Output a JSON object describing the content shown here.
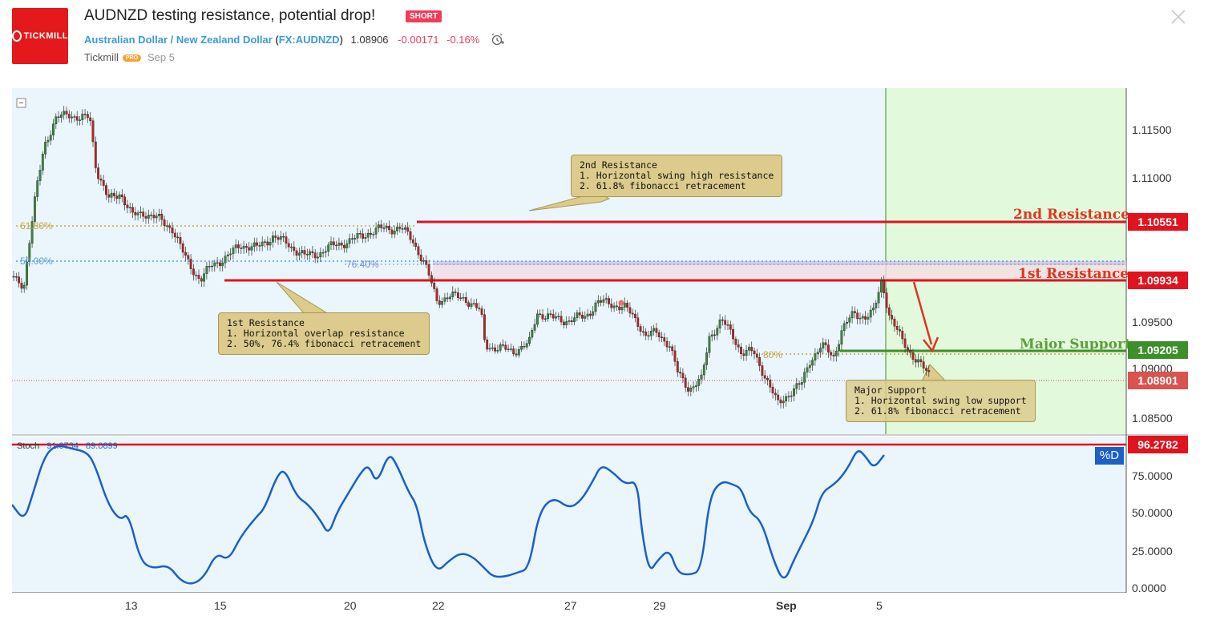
{
  "header": {
    "logo_text": "TICKMILL",
    "title": "AUDNZD testing resistance, potential drop!",
    "badge": "SHORT",
    "symbol_name": "Australian Dollar / New Zealand Dollar",
    "symbol_code": "FX:AUDNZD",
    "price": "1.08906",
    "change": "-0.00171",
    "change_pct": "-0.16%",
    "author": "Tickmill",
    "author_badge": "PRO",
    "date": "Sep 5"
  },
  "price_axis": {
    "ticks": [
      "1.11500",
      "1.11000",
      "1.09500",
      "1.09000",
      "1.08500"
    ],
    "labels": {
      "second_resistance": "1.10551",
      "first_resistance": "1.09934",
      "major_support": "1.09205",
      "current": "1.08901"
    }
  },
  "levels": {
    "second_resistance": "2nd Resistance",
    "first_resistance": "1st Resistance",
    "major_support": "Major Support"
  },
  "fib_labels": {
    "f618": "61.80%",
    "f50": "50.00%",
    "f764": "76.40%",
    "f80": "80%"
  },
  "callouts": {
    "second_resistance": "2nd Resistance\n1. Horizontal swing high resistance\n2. 61.8% fibonacci retracement",
    "first_resistance": "1st Resistance\n1. Horizontal overlap resistance\n2. 50%, 76.4% fibonacci retracement",
    "major_support": "Major Support\n1. Horizontal swing low support\n2. 61.8% fibonacci retracement"
  },
  "stoch": {
    "label": "Stoch",
    "k_value": "91.0734",
    "d_value": "89.0899",
    "level_label": "96.2782",
    "d_badge": "%D",
    "ticks": [
      "75.0000",
      "50.0000",
      "25.0000",
      "0.0000"
    ]
  },
  "x_axis": {
    "ticks": [
      "13",
      "15",
      "20",
      "22",
      "27",
      "29",
      "Sep",
      "5"
    ]
  },
  "colors": {
    "resistance": "#e0141e",
    "support": "#3e8e2a",
    "green_zone": "#e3f9dc",
    "chart_bg": "#eaf6fc",
    "stoch_line": "#1b5fc8",
    "label_blue": "#1b5fc8"
  }
}
